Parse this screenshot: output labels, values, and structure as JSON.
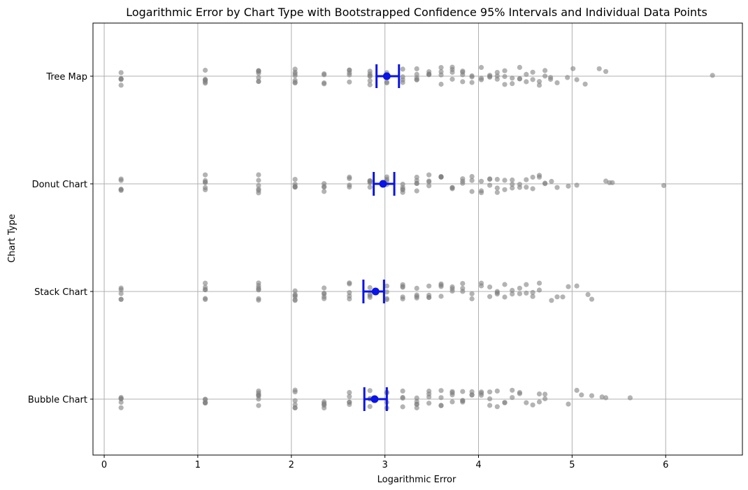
{
  "chart_data": {
    "type": "scatter",
    "title": "Logarithmic Error by Chart Type with Bootstrapped Confidence 95% Intervals and Individual Data Points",
    "xlabel": "Logarithmic Error",
    "ylabel": "Chart Type",
    "xlim": [
      -0.12,
      6.82
    ],
    "xticks": [
      0,
      1,
      2,
      3,
      4,
      5,
      6
    ],
    "categories": [
      "Tree Map",
      "Donut Chart",
      "Stack Chart",
      "Bubble Chart"
    ],
    "grid": true,
    "point_color": "#808080",
    "ci_color": "#0a14e6",
    "series": [
      {
        "category": "Tree Map",
        "mean": 3.02,
        "ci": [
          2.91,
          3.15
        ],
        "points": [
          0.18,
          0.18,
          0.18,
          0.18,
          0.18,
          1.08,
          1.08,
          1.08,
          1.08,
          1.08,
          1.08,
          1.65,
          1.65,
          1.65,
          1.65,
          1.65,
          1.65,
          1.65,
          2.04,
          2.04,
          2.04,
          2.04,
          2.04,
          2.04,
          2.04,
          2.35,
          2.35,
          2.35,
          2.35,
          2.62,
          2.62,
          2.62,
          2.62,
          2.62,
          2.84,
          2.84,
          2.84,
          2.84,
          2.84,
          2.84,
          3.02,
          3.02,
          3.02,
          3.02,
          3.19,
          3.19,
          3.19,
          3.19,
          3.34,
          3.34,
          3.34,
          3.34,
          3.34,
          3.47,
          3.47,
          3.47,
          3.47,
          3.6,
          3.6,
          3.6,
          3.6,
          3.72,
          3.72,
          3.72,
          3.72,
          3.83,
          3.83,
          3.83,
          3.83,
          3.93,
          3.93,
          3.93,
          4.03,
          4.03,
          4.03,
          4.12,
          4.12,
          4.12,
          4.2,
          4.2,
          4.2,
          4.28,
          4.28,
          4.28,
          4.36,
          4.36,
          4.44,
          4.44,
          4.44,
          4.51,
          4.51,
          4.58,
          4.58,
          4.65,
          4.65,
          4.71,
          4.71,
          4.77,
          4.77,
          4.84,
          4.95,
          5.05,
          5.01,
          5.14,
          5.29,
          5.36,
          6.5
        ]
      },
      {
        "category": "Donut Chart",
        "mean": 2.98,
        "ci": [
          2.88,
          3.1
        ],
        "points": [
          0.18,
          0.18,
          0.18,
          0.18,
          0.18,
          1.08,
          1.08,
          1.08,
          1.08,
          1.08,
          1.08,
          1.65,
          1.65,
          1.65,
          1.65,
          1.65,
          1.65,
          2.04,
          2.04,
          2.04,
          2.04,
          2.04,
          2.35,
          2.35,
          2.35,
          2.35,
          2.62,
          2.62,
          2.62,
          2.62,
          2.84,
          2.84,
          2.84,
          2.84,
          2.84,
          3.02,
          3.02,
          3.02,
          3.02,
          3.19,
          3.19,
          3.19,
          3.19,
          3.19,
          3.34,
          3.34,
          3.34,
          3.34,
          3.34,
          3.47,
          3.47,
          3.47,
          3.47,
          3.6,
          3.6,
          3.6,
          3.6,
          3.72,
          3.72,
          3.72,
          3.83,
          3.83,
          3.83,
          3.93,
          3.93,
          3.93,
          4.03,
          4.03,
          4.03,
          4.12,
          4.12,
          4.12,
          4.2,
          4.2,
          4.2,
          4.28,
          4.28,
          4.36,
          4.36,
          4.36,
          4.44,
          4.44,
          4.51,
          4.51,
          4.58,
          4.58,
          4.65,
          4.65,
          4.71,
          4.71,
          4.78,
          4.84,
          4.96,
          5.05,
          5.36,
          5.4,
          5.43,
          5.98
        ]
      },
      {
        "category": "Stack Chart",
        "mean": 2.9,
        "ci": [
          2.77,
          2.99
        ],
        "points": [
          0.18,
          0.18,
          0.18,
          0.18,
          0.18,
          1.08,
          1.08,
          1.08,
          1.08,
          1.08,
          1.08,
          1.65,
          1.65,
          1.65,
          1.65,
          1.65,
          1.65,
          1.65,
          2.04,
          2.04,
          2.04,
          2.04,
          2.04,
          2.04,
          2.35,
          2.35,
          2.35,
          2.35,
          2.35,
          2.62,
          2.62,
          2.62,
          2.62,
          2.62,
          2.84,
          2.84,
          2.84,
          2.84,
          3.02,
          3.02,
          3.02,
          3.02,
          3.19,
          3.19,
          3.19,
          3.19,
          3.19,
          3.34,
          3.34,
          3.34,
          3.34,
          3.47,
          3.47,
          3.47,
          3.47,
          3.6,
          3.6,
          3.6,
          3.6,
          3.72,
          3.72,
          3.72,
          3.83,
          3.83,
          3.83,
          3.93,
          3.93,
          4.03,
          4.03,
          4.12,
          4.12,
          4.2,
          4.2,
          4.2,
          4.28,
          4.28,
          4.36,
          4.36,
          4.44,
          4.44,
          4.51,
          4.51,
          4.58,
          4.58,
          4.65,
          4.65,
          4.78,
          4.84,
          4.9,
          4.96,
          5.05,
          5.17,
          5.21
        ]
      },
      {
        "category": "Bubble Chart",
        "mean": 2.89,
        "ci": [
          2.78,
          3.02
        ],
        "points": [
          0.18,
          0.18,
          0.18,
          0.18,
          0.18,
          1.08,
          1.08,
          1.08,
          1.08,
          1.08,
          1.65,
          1.65,
          1.65,
          1.65,
          1.65,
          1.65,
          1.65,
          2.04,
          2.04,
          2.04,
          2.04,
          2.04,
          2.04,
          2.35,
          2.35,
          2.35,
          2.35,
          2.35,
          2.62,
          2.62,
          2.62,
          2.62,
          2.62,
          2.84,
          2.84,
          2.84,
          2.84,
          3.02,
          3.02,
          3.02,
          3.02,
          3.19,
          3.19,
          3.19,
          3.19,
          3.34,
          3.34,
          3.34,
          3.34,
          3.34,
          3.47,
          3.47,
          3.47,
          3.47,
          3.6,
          3.6,
          3.6,
          3.6,
          3.72,
          3.72,
          3.72,
          3.72,
          3.83,
          3.83,
          3.83,
          3.83,
          3.93,
          3.93,
          3.93,
          4.03,
          4.03,
          4.03,
          4.12,
          4.12,
          4.12,
          4.2,
          4.2,
          4.28,
          4.28,
          4.36,
          4.36,
          4.44,
          4.44,
          4.51,
          4.58,
          4.65,
          4.65,
          4.71,
          4.71,
          4.96,
          5.05,
          5.1,
          5.21,
          5.32,
          5.36,
          5.62
        ]
      }
    ]
  }
}
